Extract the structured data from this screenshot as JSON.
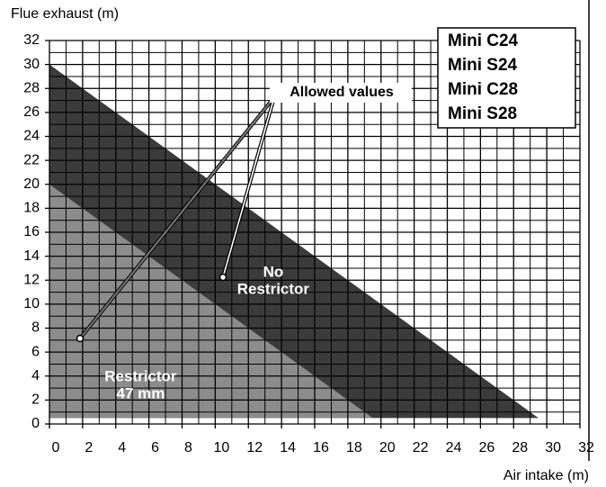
{
  "chart_data": {
    "type": "area",
    "xlabel": "Air intake (m)",
    "ylabel": "Flue exhaust (m)",
    "xlim": [
      0,
      32
    ],
    "ylim": [
      0,
      32
    ],
    "xticks": [
      0,
      2,
      4,
      6,
      8,
      10,
      12,
      14,
      16,
      18,
      20,
      22,
      24,
      26,
      28,
      30,
      32
    ],
    "yticks": [
      0,
      2,
      4,
      6,
      8,
      10,
      12,
      14,
      16,
      18,
      20,
      22,
      24,
      26,
      28,
      30,
      32
    ],
    "xminorticks": [
      1,
      3,
      5,
      7,
      9,
      11,
      13,
      15,
      17,
      19,
      21,
      23,
      25,
      27,
      29,
      31
    ],
    "yminorticks": [
      1,
      3,
      5,
      7,
      9,
      11,
      13,
      15,
      17,
      19,
      21,
      23,
      25,
      27,
      29,
      31
    ],
    "grid": true,
    "series": [
      {
        "label": [
          "No",
          "Restrictor"
        ],
        "color": "#3b3b3b",
        "x": [
          0,
          0,
          29.5
        ],
        "values": [
          30,
          0.5,
          0.5
        ]
      },
      {
        "label": [
          "Restrictor",
          "47 mm"
        ],
        "color": "#8c8c8c",
        "x": [
          0,
          0,
          19.5
        ],
        "values": [
          20,
          0.5,
          0.5
        ]
      }
    ],
    "annotation": "Allowed values",
    "models": [
      "Mini C24",
      "Mini S24",
      "Mini C28",
      "Mini S28"
    ]
  }
}
